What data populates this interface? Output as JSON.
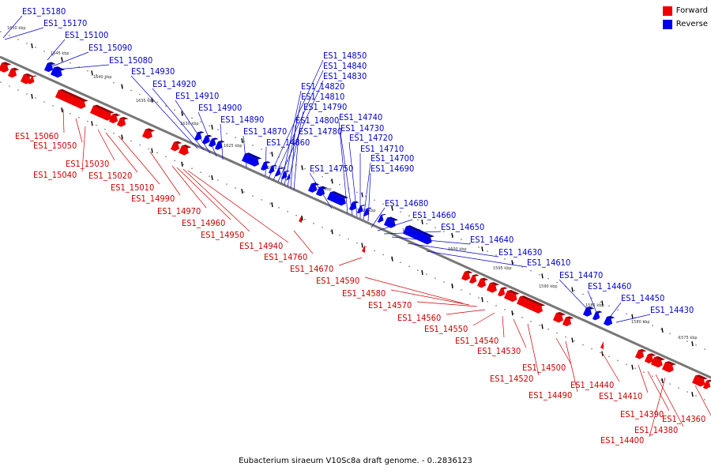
{
  "title": "Eubacterium siraeum V10Sc8a draft genome. - 0..2836123",
  "legend": [
    {
      "label": "Forward",
      "color": "#ee0000"
    },
    {
      "label": "Reverse",
      "color": "#0000ee"
    }
  ],
  "scale_marks": [
    "1650 kbp",
    "1645 kbp",
    "1640 kbp",
    "1635 kbp",
    "1630 kbp",
    "1625 kbp",
    "1620 kbp",
    "1615 kbp",
    "1610 kbp",
    "1605 kbp",
    "1600 kbp",
    "1595 kbp",
    "1590 kbp",
    "1585 kbp",
    "1580 kbp",
    "1575 kbp"
  ],
  "reverse_genes": [
    "ES1_15180",
    "ES1_15170",
    "ES1_15100",
    "ES1_15090",
    "ES1_15080",
    "ES1_14930",
    "ES1_14920",
    "ES1_14910",
    "ES1_14900",
    "ES1_14890",
    "ES1_14870",
    "ES1_14860",
    "ES1_14850",
    "ES1_14840",
    "ES1_14830",
    "ES1_14820",
    "ES1_14810",
    "ES1_14790",
    "ES1_14800",
    "ES1_14780",
    "ES1_14740",
    "ES1_14730",
    "ES1_14720",
    "ES1_14710",
    "ES1_14700",
    "ES1_14690",
    "ES1_14750",
    "ES1_14680",
    "ES1_14660",
    "ES1_14650",
    "ES1_14640",
    "ES1_14630",
    "ES1_14610",
    "ES1_14470",
    "ES1_14460",
    "ES1_14450",
    "ES1_14430"
  ],
  "forward_genes": [
    "ES1_15060",
    "ES1_15050",
    "ES1_15040",
    "ES1_15030",
    "ES1_15020",
    "ES1_15010",
    "ES1_14990",
    "ES1_14970",
    "ES1_14960",
    "ES1_14950",
    "ES1_14940",
    "ES1_14760",
    "ES1_14670",
    "ES1_14590",
    "ES1_14580",
    "ES1_14570",
    "ES1_14560",
    "ES1_14550",
    "ES1_14540",
    "ES1_14530",
    "ES1_14520",
    "ES1_14500",
    "ES1_14490",
    "ES1_14440",
    "ES1_14410",
    "ES1_14390",
    "ES1_14380",
    "ES1_14400",
    "ES1_14360"
  ]
}
